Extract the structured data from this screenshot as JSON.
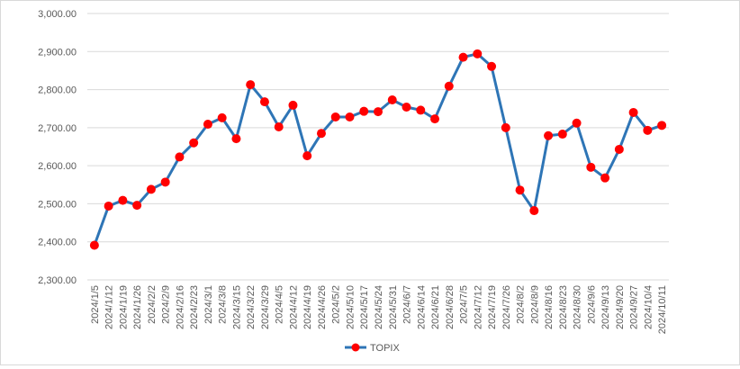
{
  "chart_data": {
    "type": "line",
    "title": "",
    "xlabel": "",
    "ylabel": "",
    "ylim": [
      2300,
      3000
    ],
    "yticks": [
      "2,300.00",
      "2,400.00",
      "2,500.00",
      "2,600.00",
      "2,700.00",
      "2,800.00",
      "2,900.00",
      "3,000.00"
    ],
    "grid": true,
    "legend_position": "bottom",
    "x": [
      "2024/1/5",
      "2024/1/12",
      "2024/1/19",
      "2024/1/26",
      "2024/2/2",
      "2024/2/9",
      "2024/2/16",
      "2024/2/23",
      "2024/3/1",
      "2024/3/8",
      "2024/3/15",
      "2024/3/22",
      "2024/3/29",
      "2024/4/5",
      "2024/4/12",
      "2024/4/19",
      "2024/4/26",
      "2024/5/2",
      "2024/5/10",
      "2024/5/17",
      "2024/5/24",
      "2024/5/31",
      "2024/6/7",
      "2024/6/14",
      "2024/6/21",
      "2024/6/28",
      "2024/7/5",
      "2024/7/12",
      "2024/7/19",
      "2024/7/26",
      "2024/8/2",
      "2024/8/9",
      "2024/8/16",
      "2024/8/23",
      "2024/8/30",
      "2024/9/6",
      "2024/9/13",
      "2024/9/20",
      "2024/9/27",
      "2024/10/4",
      "2024/10/11"
    ],
    "series": [
      {
        "name": "TOPIX",
        "line_color": "#2e75b6",
        "marker_color": "#ff0000",
        "values": [
          2391,
          2494,
          2509,
          2496,
          2538,
          2557,
          2623,
          2660,
          2709,
          2726,
          2671,
          2813,
          2768,
          2702,
          2759,
          2626,
          2685,
          2728,
          2728,
          2743,
          2742,
          2773,
          2754,
          2746,
          2723,
          2809,
          2885,
          2894,
          2861,
          2700,
          2536,
          2482,
          2679,
          2683,
          2712,
          2596,
          2568,
          2643,
          2740,
          2693,
          2706
        ]
      }
    ]
  }
}
